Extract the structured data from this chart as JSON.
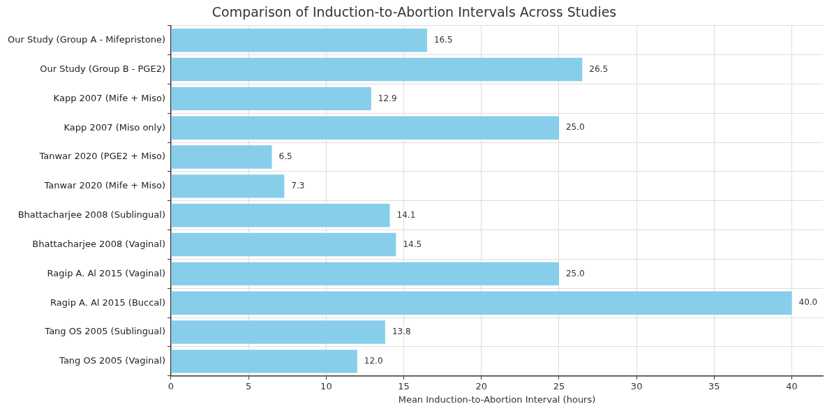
{
  "chart_data": {
    "type": "bar",
    "orientation": "horizontal",
    "title": "Comparison of Induction-to-Abortion Intervals Across Studies",
    "xlabel": "Mean Induction-to-Abortion Interval (hours)",
    "categories": [
      "Our Study (Group A - Mifepristone)",
      "Our Study (Group B - PGE2)",
      "Kapp 2007 (Mife + Miso)",
      "Kapp 2007 (Miso only)",
      "Tanwar 2020 (PGE2 + Miso)",
      "Tanwar 2020 (Mife + Miso)",
      "Bhattacharjee 2008 (Sublingual)",
      "Bhattacharjee 2008 (Vaginal)",
      "Ragip A. Al 2015 (Vaginal)",
      "Ragip A. Al 2015 (Buccal)",
      "Tang OS 2005 (Sublingual)",
      "Tang OS 2005 (Vaginal)"
    ],
    "values": [
      16.5,
      26.5,
      12.9,
      25.0,
      6.5,
      7.3,
      14.1,
      14.5,
      25.0,
      40.0,
      13.8,
      12.0
    ],
    "value_labels": [
      "16.5",
      "26.5",
      "12.9",
      "25.0",
      "6.5",
      "7.3",
      "14.1",
      "14.5",
      "25.0",
      "40.0",
      "13.8",
      "12.0"
    ],
    "color": "#87ceeb",
    "xlim": [
      0,
      42
    ],
    "xticks": [
      0,
      5,
      10,
      15,
      20,
      25,
      30,
      35,
      40
    ],
    "grid": true,
    "legend": false
  }
}
